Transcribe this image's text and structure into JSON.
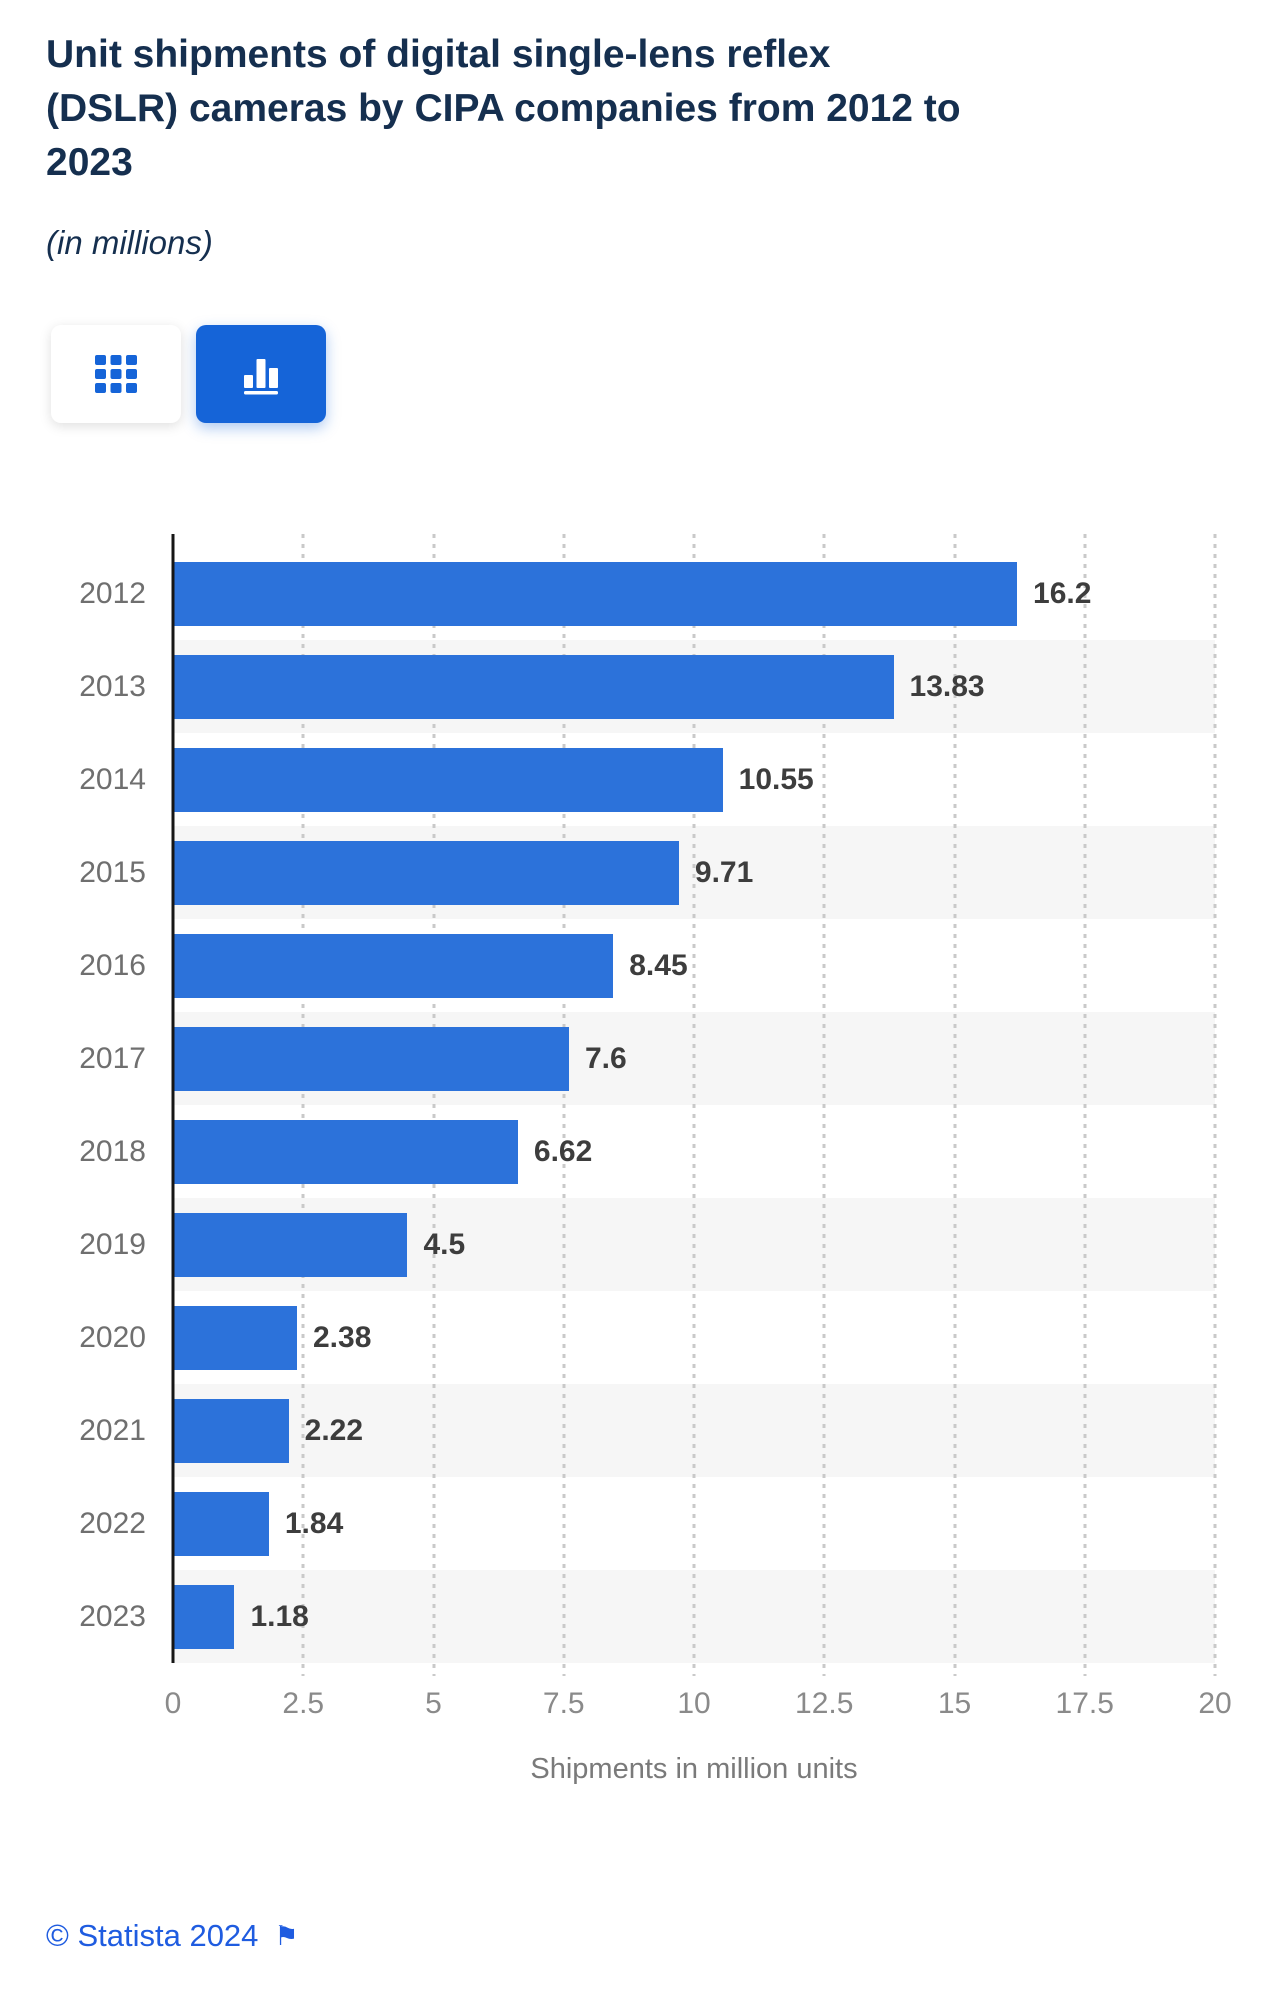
{
  "header": {
    "title_lines": [
      "Unit shipments of digital single-lens reflex",
      "(DSLR) cameras by CIPA companies from 2012 to",
      "2023"
    ],
    "title": "Unit shipments of digital single-lens reflex (DSLR) cameras by CIPA companies from 2012 to 2023",
    "subtitle": "(in millions)"
  },
  "toolbar": {
    "buttons": [
      {
        "name": "table-view",
        "icon": "table-grid-icon",
        "active": false
      },
      {
        "name": "chart-view",
        "icon": "bar-chart-icon",
        "active": true
      }
    ]
  },
  "chart_data": {
    "type": "bar",
    "orientation": "horizontal",
    "title": "Unit shipments of digital single-lens reflex (DSLR) cameras by CIPA companies from 2012 to 2023",
    "subtitle": "(in millions)",
    "categories": [
      "2012",
      "2013",
      "2014",
      "2015",
      "2016",
      "2017",
      "2018",
      "2019",
      "2020",
      "2021",
      "2022",
      "2023"
    ],
    "values": [
      16.2,
      13.83,
      10.55,
      9.71,
      8.45,
      7.6,
      6.62,
      4.5,
      2.38,
      2.22,
      1.84,
      1.18
    ],
    "value_labels": [
      "16.2",
      "13.83",
      "10.55",
      "9.71",
      "8.45",
      "7.6",
      "6.62",
      "4.5",
      "2.38",
      "2.22",
      "1.84",
      "1.18"
    ],
    "xlabel": "Shipments in million units",
    "ylabel": "",
    "xlim": [
      0,
      20
    ],
    "xticks": [
      "0",
      "2.5",
      "5",
      "7.5",
      "10",
      "12.5",
      "15",
      "17.5",
      "20"
    ],
    "grid": true,
    "zebra_striping": true,
    "legend": "none"
  },
  "footer": {
    "copyright": "© Statista 2024",
    "flag_icon": "⚑"
  },
  "colors": {
    "title_navy": "#152f4f",
    "bar_blue": "#2c72da",
    "active_button_blue": "#1564d8",
    "footer_blue": "#1f5ce0",
    "zebra_gray": "#f6f6f6",
    "gridline_gray": "#c9c9c9",
    "axis_black": "#161616",
    "year_label_gray": "#6f6f6f",
    "value_label_gray": "#3d3d3d",
    "tick_label_gray": "#8a8a8a",
    "axis_title_gray": "#7a7a7a"
  }
}
